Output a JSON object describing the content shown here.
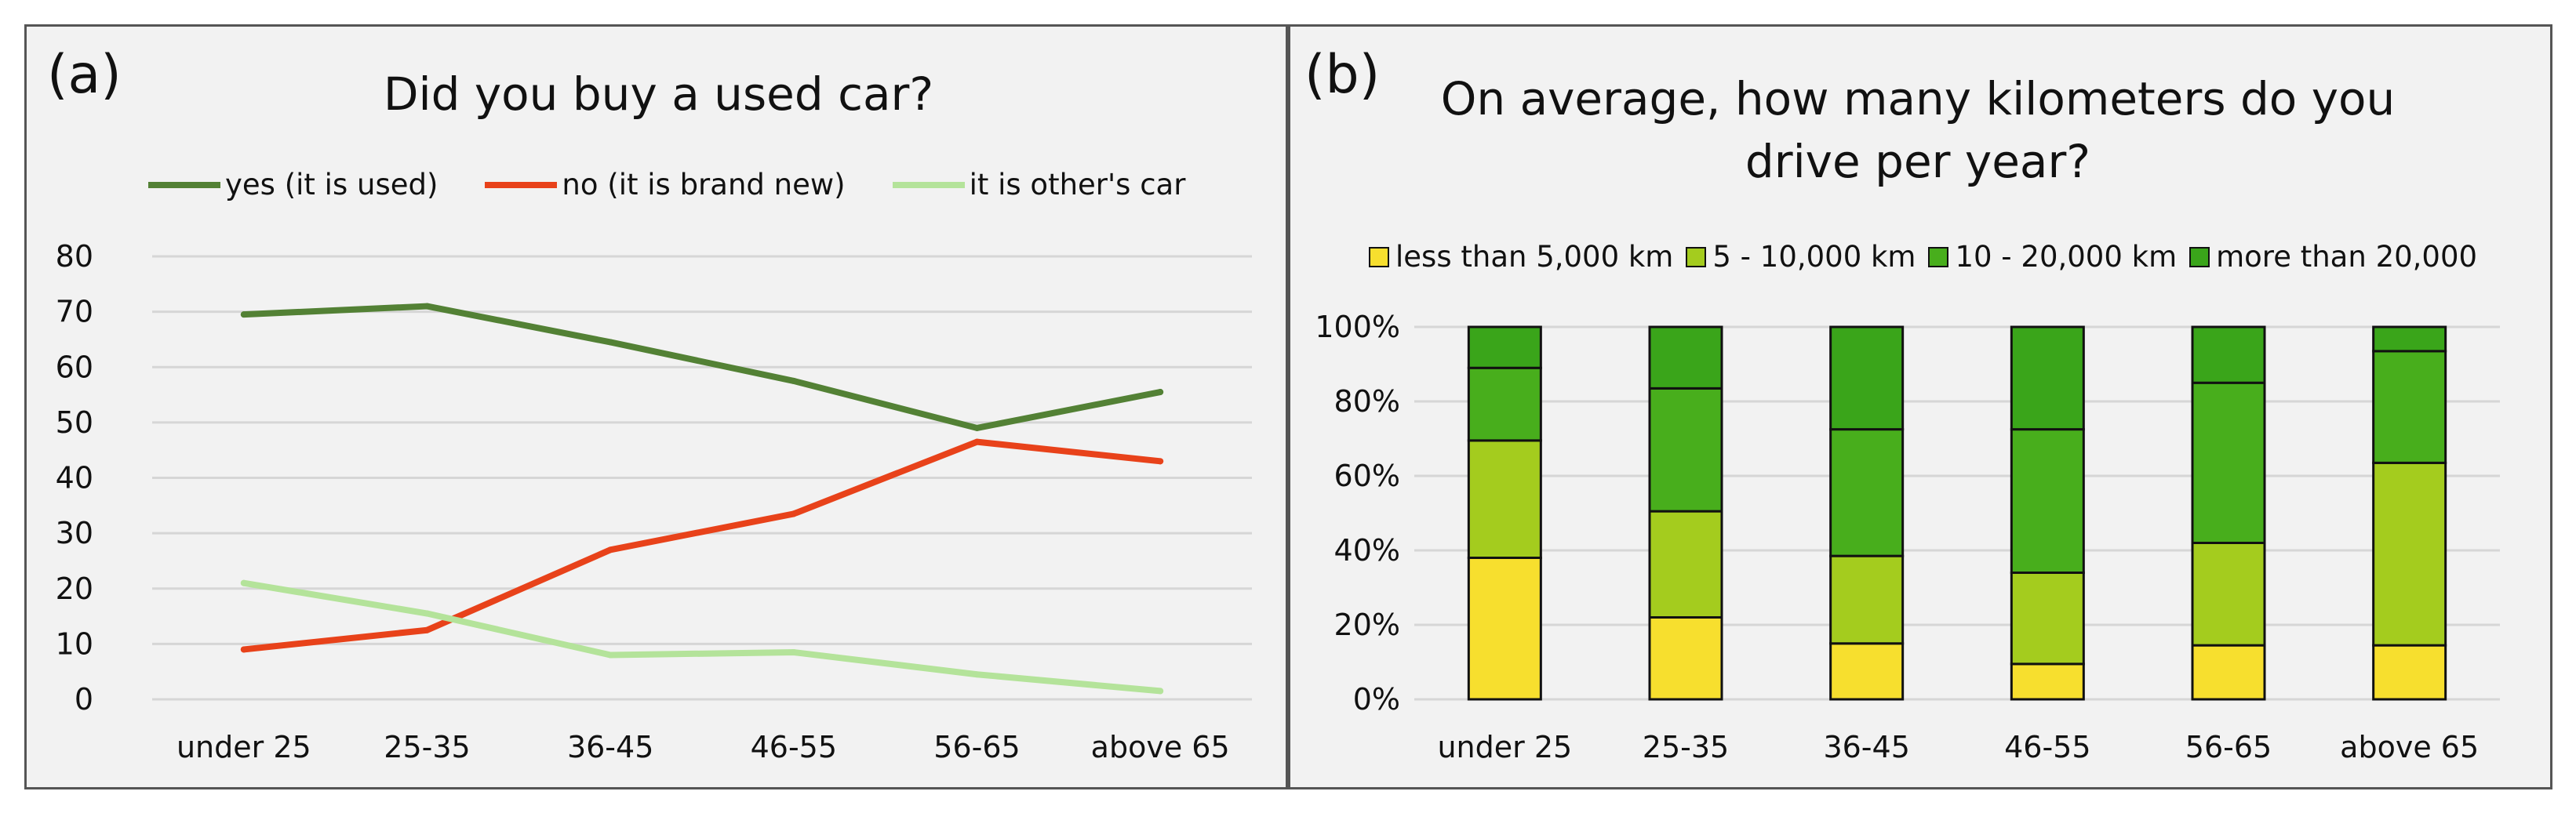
{
  "panels": [
    {
      "label": "(a)",
      "title": "Did you buy a used car?"
    },
    {
      "label": "(b)",
      "title_line1": "On average, how many kilometers do you",
      "title_line2": "drive per year?"
    }
  ],
  "chart_data": [
    {
      "type": "line",
      "title": "Did you buy a used car?",
      "categories": [
        "under 25",
        "25-35",
        "36-45",
        "46-55",
        "56-65",
        "above 65"
      ],
      "ylim": [
        0,
        80
      ],
      "yticks": [
        0,
        10,
        20,
        30,
        40,
        50,
        60,
        70,
        80
      ],
      "grid": true,
      "legend": "top",
      "series": [
        {
          "name": "yes (it is used)",
          "color": "#538135",
          "values": [
            69.5,
            71,
            64.5,
            57.5,
            49,
            55.5
          ]
        },
        {
          "name": "no (it is brand new)",
          "color": "#e8421a",
          "values": [
            9,
            12.5,
            27,
            33.5,
            46.5,
            43
          ]
        },
        {
          "name": "it is other's car",
          "color": "#b4e39a",
          "values": [
            21,
            15.5,
            8,
            8.5,
            4.5,
            1.5
          ]
        }
      ]
    },
    {
      "type": "bar",
      "stacked": true,
      "title": "On average, how many kilometers do you drive per year?",
      "categories": [
        "under 25",
        "25-35",
        "36-45",
        "46-55",
        "56-65",
        "above 65"
      ],
      "ylim": [
        0,
        100
      ],
      "yticks": [
        "0%",
        "20%",
        "40%",
        "60%",
        "80%",
        "100%"
      ],
      "grid": true,
      "legend": "top",
      "series": [
        {
          "name": "less than 5,000 km",
          "color": "#f7df2e",
          "values": [
            38,
            22,
            15,
            9.5,
            14.5,
            14.5
          ]
        },
        {
          "name": "5 - 10,000 km",
          "color": "#a4cc1e",
          "values": [
            31.5,
            28.5,
            23.5,
            24.5,
            27.5,
            49
          ]
        },
        {
          "name": "10 - 20,000 km",
          "color": "#48ae1c",
          "values": [
            19.5,
            33,
            34,
            38.5,
            43,
            30
          ]
        },
        {
          "name": "more than 20,000",
          "color": "#3aa51a",
          "values": [
            11,
            16.5,
            27.5,
            27.5,
            15,
            6.5
          ]
        }
      ]
    }
  ]
}
